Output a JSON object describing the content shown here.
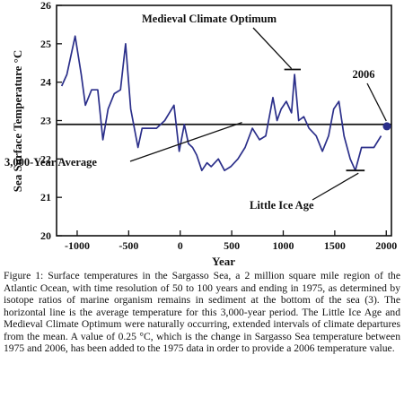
{
  "chart_data": {
    "type": "line",
    "xlabel": "Year",
    "ylabel": "Sea Surface Temperature °C",
    "xlim": [
      -1200,
      2050
    ],
    "ylim": [
      20,
      26
    ],
    "xticks": [
      -1000,
      -500,
      0,
      500,
      1000,
      1500,
      2000
    ],
    "xtick_labels": [
      "-1000",
      "-500",
      "0",
      "500",
      "1000",
      "1500",
      "2000"
    ],
    "yticks": [
      20,
      21,
      22,
      23,
      24,
      25,
      26
    ],
    "ytick_labels": [
      "20",
      "21",
      "22",
      "23",
      "24",
      "25",
      "26"
    ],
    "grid": false,
    "legend": "none",
    "colors": {
      "series": "#2b2f8a",
      "average_line": "#111111",
      "annotation": "#111111"
    },
    "series": [
      {
        "x": [
          -1150,
          -1100,
          -1020,
          -960,
          -920,
          -860,
          -800,
          -750,
          -700,
          -640,
          -580,
          -530,
          -480,
          -410,
          -370,
          -300,
          -230,
          -150,
          -60,
          -10,
          40,
          80,
          120,
          160,
          210,
          260,
          300,
          370,
          430,
          490,
          560,
          630,
          700,
          770,
          830,
          900,
          940,
          980,
          1030,
          1080,
          1110,
          1150,
          1200,
          1250,
          1320,
          1380,
          1440,
          1490,
          1540,
          1590,
          1650,
          1700,
          1760,
          1820,
          1880,
          1950
        ],
        "y": [
          23.9,
          24.2,
          25.2,
          24.2,
          23.4,
          23.8,
          23.8,
          22.5,
          23.3,
          23.7,
          23.8,
          25.0,
          23.3,
          22.3,
          22.8,
          22.8,
          22.8,
          23.0,
          23.4,
          22.2,
          22.9,
          22.4,
          22.3,
          22.1,
          21.7,
          21.9,
          21.8,
          22.0,
          21.7,
          21.8,
          22.0,
          22.3,
          22.8,
          22.5,
          22.6,
          23.6,
          23.0,
          23.3,
          23.5,
          23.2,
          24.2,
          23.0,
          23.1,
          22.8,
          22.6,
          22.2,
          22.6,
          23.3,
          23.5,
          22.6,
          22.0,
          21.7,
          22.3,
          22.3,
          22.3,
          22.6
        ]
      }
    ],
    "average": 22.9,
    "highlight": {
      "x": 2006,
      "y": 22.85,
      "label": "2006"
    },
    "annotations": {
      "medieval": "Medieval Climate Optimum",
      "average": "3,000-Year Average",
      "little_ice_age": "Little Ice Age",
      "year_2006": "2006"
    }
  },
  "caption": "Figure 1: Surface temperatures in the Sargasso Sea, a 2 million square mile region of the Atlantic Ocean, with time resolution of 50 to 100 years and ending in 1975, as determined by isotope ratios of marine organism remains in sediment at the bottom of the sea (3). The horizontal line is the average temperature for this 3,000-year period. The Little Ice Age and Medieval Climate Optimum were naturally occurring, extended intervals of climate departures from the mean. A value of 0.25 °C, which is the change in Sargasso Sea temperature between 1975 and 2006, has been added to the 1975 data in order to provide a 2006 temperature value."
}
